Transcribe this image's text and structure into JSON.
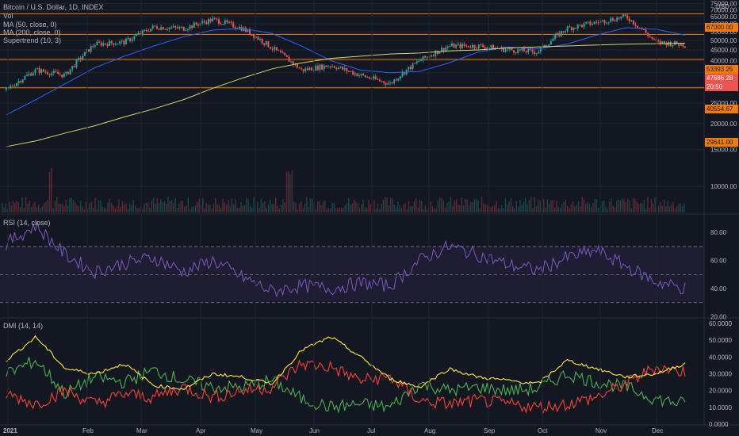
{
  "legend": {
    "title": "Bitcoin / U.S. Dollar, 1D, INDEX",
    "vol": "Vol",
    "ma50": "MA (50, close, 0)",
    "ma200": "MA (200, close, 0)",
    "supertrend": "Supertrend (10, 3)",
    "rsi": "RSI (14, close)",
    "dmi": "DMI (14, 14)"
  },
  "currency": "USD",
  "colors": {
    "background": "#131722",
    "grid": "#1f2430",
    "up": "#26a69a",
    "down": "#ef5350",
    "ma50": "#2962ff",
    "ma200": "#d4d66b",
    "hline": "#f57c00",
    "rsi": "#7e57c2",
    "dmi_adx": "#ffeb3b",
    "dmi_plus": "#4caf50",
    "dmi_minus": "#f44336",
    "current_price": "#ef5350"
  },
  "price_axis_ticks": [
    "75000.00",
    "70000.00",
    "65000.00",
    "60000.00",
    "55000.00",
    "50000.00",
    "45000.00",
    "40000.00",
    "35000.00",
    "30000.00",
    "25000.00",
    "20000.00",
    "15000.00",
    "10000.00"
  ],
  "rsi_axis_ticks": [
    "80.00",
    "60.00",
    "40.00",
    "20.00"
  ],
  "dmi_axis_ticks": [
    "60.0000",
    "50.0000",
    "40.0000",
    "30.0000",
    "20.0000",
    "10.0000",
    "0.0000"
  ],
  "time_axis": [
    "2021",
    "Feb",
    "Mar",
    "Apr",
    "May",
    "Jun",
    "Jul",
    "Aug",
    "Sep",
    "Oct",
    "Nov",
    "Dec"
  ],
  "horizontal_levels": [
    "67000.00",
    "53393.25",
    "40554.67",
    "29641.00"
  ],
  "current_price": "47686.28",
  "countdown": "20:50",
  "chart_data": [
    {
      "type": "candlestick",
      "title": "Bitcoin / U.S. Dollar, 1D, INDEX",
      "y_scale": "log",
      "ylim": [
        7500,
        76000
      ],
      "x": [
        "2021-01",
        "2021-01-15",
        "2021-02",
        "2021-02-15",
        "2021-03",
        "2021-03-15",
        "2021-04",
        "2021-04-15",
        "2021-05",
        "2021-05-15",
        "2021-06",
        "2021-06-15",
        "2021-07",
        "2021-07-15",
        "2021-08",
        "2021-08-15",
        "2021-09",
        "2021-09-15",
        "2021-10",
        "2021-10-15",
        "2021-11",
        "2021-11-15",
        "2021-12",
        "2021-12-15"
      ],
      "close": [
        29000,
        36000,
        34000,
        48000,
        49000,
        58000,
        57000,
        63000,
        57000,
        46000,
        36000,
        38000,
        34000,
        31000,
        40000,
        47000,
        47000,
        45000,
        44000,
        57000,
        61000,
        65000,
        49000,
        47686
      ],
      "horizontal_levels": [
        67000,
        53393.25,
        40554.67,
        29641
      ],
      "series": [
        {
          "name": "MA (50, close, 0)",
          "values": [
            22000,
            26000,
            31000,
            37000,
            42000,
            47000,
            52000,
            56000,
            57000,
            54000,
            47000,
            40000,
            36000,
            35000,
            35500,
            39000,
            44000,
            46500,
            45500,
            48000,
            53000,
            57500,
            56500,
            53000
          ]
        },
        {
          "name": "MA (200, close, 0)",
          "values": [
            15500,
            16500,
            18000,
            19500,
            21500,
            23500,
            26000,
            29500,
            33000,
            36500,
            39000,
            41000,
            42000,
            43000,
            43500,
            44500,
            45000,
            46000,
            46500,
            47000,
            47500,
            48000,
            48200,
            48500
          ]
        }
      ]
    },
    {
      "type": "line",
      "title": "RSI (14, close)",
      "ylim": [
        18,
        92
      ],
      "levels": [
        70,
        50,
        30
      ],
      "values": [
        72,
        85,
        64,
        52,
        58,
        62,
        52,
        60,
        48,
        38,
        42,
        40,
        44,
        42,
        60,
        70,
        64,
        57,
        53,
        62,
        67,
        56,
        45,
        40
      ]
    },
    {
      "type": "line",
      "title": "DMI (14, 14)",
      "ylim": [
        0,
        60
      ],
      "series": [
        {
          "name": "ADX",
          "values": [
            38,
            52,
            33,
            30,
            36,
            23,
            21,
            30,
            28,
            24,
            44,
            52,
            40,
            27,
            22,
            33,
            28,
            26,
            24,
            38,
            33,
            28,
            30,
            36
          ]
        },
        {
          "name": "+DI",
          "values": [
            30,
            38,
            18,
            28,
            25,
            32,
            26,
            22,
            22,
            26,
            15,
            10,
            12,
            10,
            24,
            20,
            22,
            20,
            21,
            30,
            25,
            22,
            15,
            12
          ]
        },
        {
          "name": "-DI",
          "values": [
            18,
            12,
            20,
            12,
            18,
            16,
            22,
            16,
            20,
            22,
            36,
            34,
            26,
            28,
            14,
            12,
            14,
            12,
            10,
            12,
            16,
            24,
            34,
            31
          ]
        }
      ]
    }
  ]
}
